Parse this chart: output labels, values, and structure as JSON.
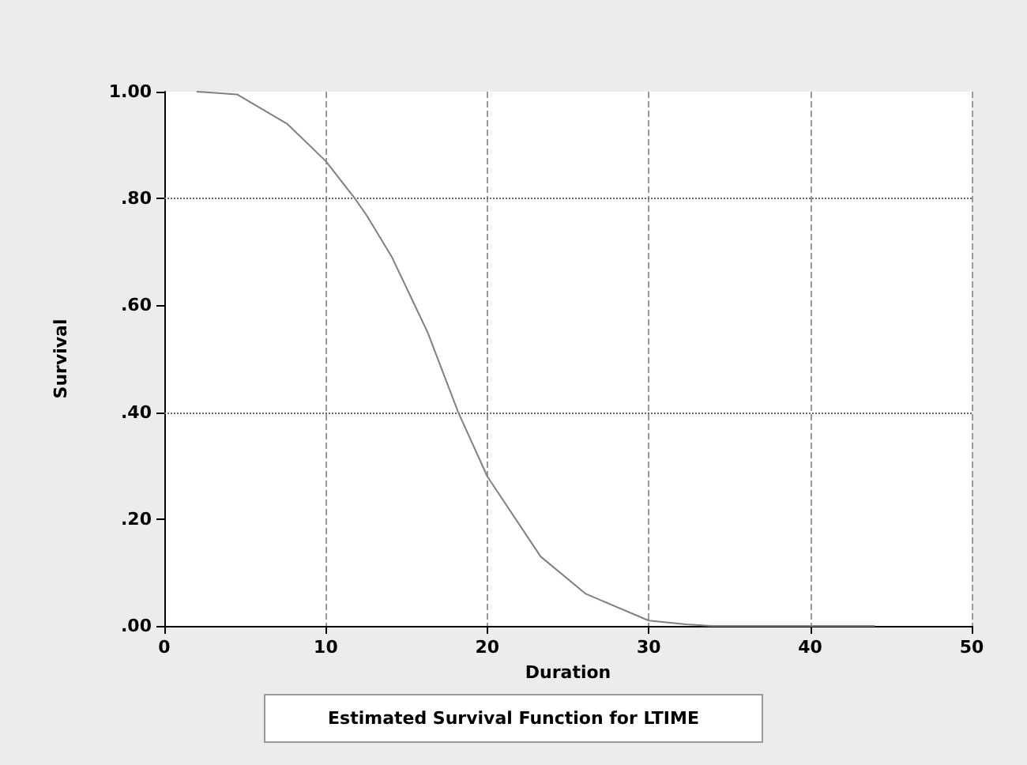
{
  "chart_data": {
    "type": "line",
    "title": "Estimated Survival Function for LTIME",
    "xlabel": "Duration",
    "ylabel": "Survival",
    "x": [
      2,
      4.5,
      7.6,
      10,
      11.8,
      12.5,
      14.1,
      16.3,
      18.2,
      20,
      23.3,
      26.1,
      30,
      32.3,
      33.9,
      35.5,
      44
    ],
    "series": [
      {
        "color": "#808080",
        "values": [
          1,
          0.995,
          0.94,
          0.87,
          0.8,
          0.77,
          0.69,
          0.55,
          0.4,
          0.28,
          0.13,
          0.06,
          0.01,
          0.003,
          0,
          0,
          0
        ]
      }
    ],
    "xlim": [
      0,
      50
    ],
    "xticks": [
      0,
      10,
      20,
      30,
      40,
      50
    ],
    "ylim": [
      0,
      1
    ],
    "yticks": [
      {
        "value": 0,
        "label": ".00"
      },
      {
        "value": 0.2,
        "label": ".20"
      },
      {
        "value": 0.4,
        "label": ".40"
      },
      {
        "value": 0.6,
        "label": ".60"
      },
      {
        "value": 0.8,
        "label": ".80"
      },
      {
        "value": 1,
        "label": "1.00"
      }
    ],
    "grid": "x",
    "ref_lines": [
      {
        "axis": "y",
        "value": 0.4
      },
      {
        "axis": "y",
        "value": 0.8
      }
    ],
    "marker": "none",
    "line_style": "solid"
  }
}
